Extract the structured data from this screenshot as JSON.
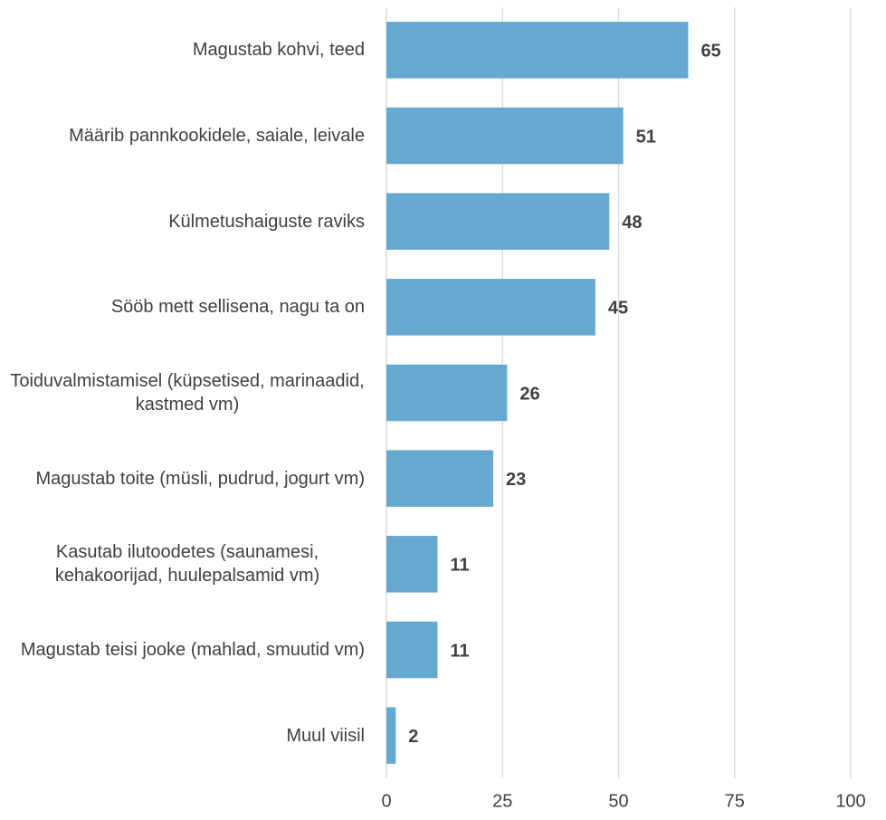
{
  "chart_data": {
    "type": "bar",
    "orientation": "horizontal",
    "categories": [
      "Magustab kohvi, teed",
      "Määrib pannkookidele, saiale, leivale",
      "Külmetushaiguste raviks",
      "Sööb mett sellisena, nagu ta on",
      "Toiduvalmistamisel (küpsetised, marinaadid, kastmed vm)",
      "Magustab toite (müsli, pudrud, jogurt vm)",
      "Kasutab ilutoodetes (saunamesi, kehakoorijad, huulepalsamid vm)",
      "Magustab teisi jooke (mahlad, smuutid vm)",
      "Muul viisil"
    ],
    "values": [
      65,
      51,
      48,
      45,
      26,
      23,
      11,
      11,
      2
    ],
    "color": "#65a8d0",
    "xlim": [
      0,
      100
    ],
    "xticks": [
      0,
      25,
      50,
      75,
      100
    ],
    "grid": true
  }
}
